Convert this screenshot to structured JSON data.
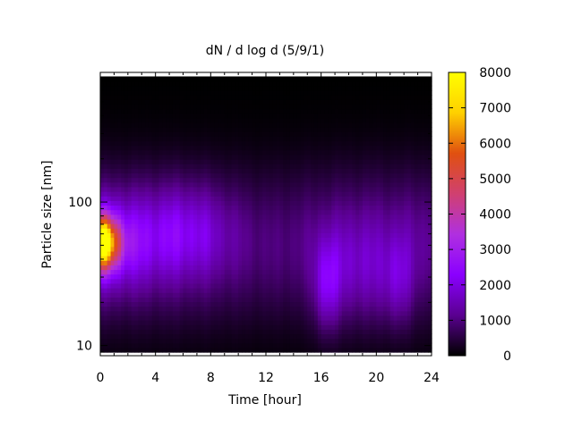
{
  "chart_data": {
    "type": "heatmap",
    "title": "dN / d log d (5/9/1)",
    "xlabel": "Time [hour]",
    "ylabel": "Particle size [nm]",
    "xlim": [
      0,
      24
    ],
    "ylim": [
      8.5,
      800
    ],
    "y_scale": "log",
    "x_ticks": [
      0,
      4,
      8,
      12,
      16,
      20,
      24
    ],
    "y_ticks": [
      10,
      100
    ],
    "colorbar": {
      "range": [
        0,
        8000
      ],
      "ticks": [
        0,
        1000,
        2000,
        3000,
        4000,
        5000,
        6000,
        7000,
        8000
      ],
      "palette": [
        "#000000",
        "#5a0090",
        "#8a00ff",
        "#b030e0",
        "#d04070",
        "#e05010",
        "#ffd000",
        "#ffff00"
      ]
    },
    "grid": false,
    "data_x_range": [
      0,
      24
    ],
    "data_y_range": [
      9,
      750
    ],
    "features": [
      {
        "label": "morning maximum near 50 nm",
        "x": 0,
        "y": 55,
        "value": 7500
      },
      {
        "label": "secondary mode",
        "x": 6,
        "y": 60,
        "value": 2200
      },
      {
        "label": "evening mode",
        "x": 16.5,
        "y": 25,
        "value": 2500
      },
      {
        "label": "evening mode",
        "x": 21.5,
        "y": 28,
        "value": 2100
      }
    ]
  }
}
